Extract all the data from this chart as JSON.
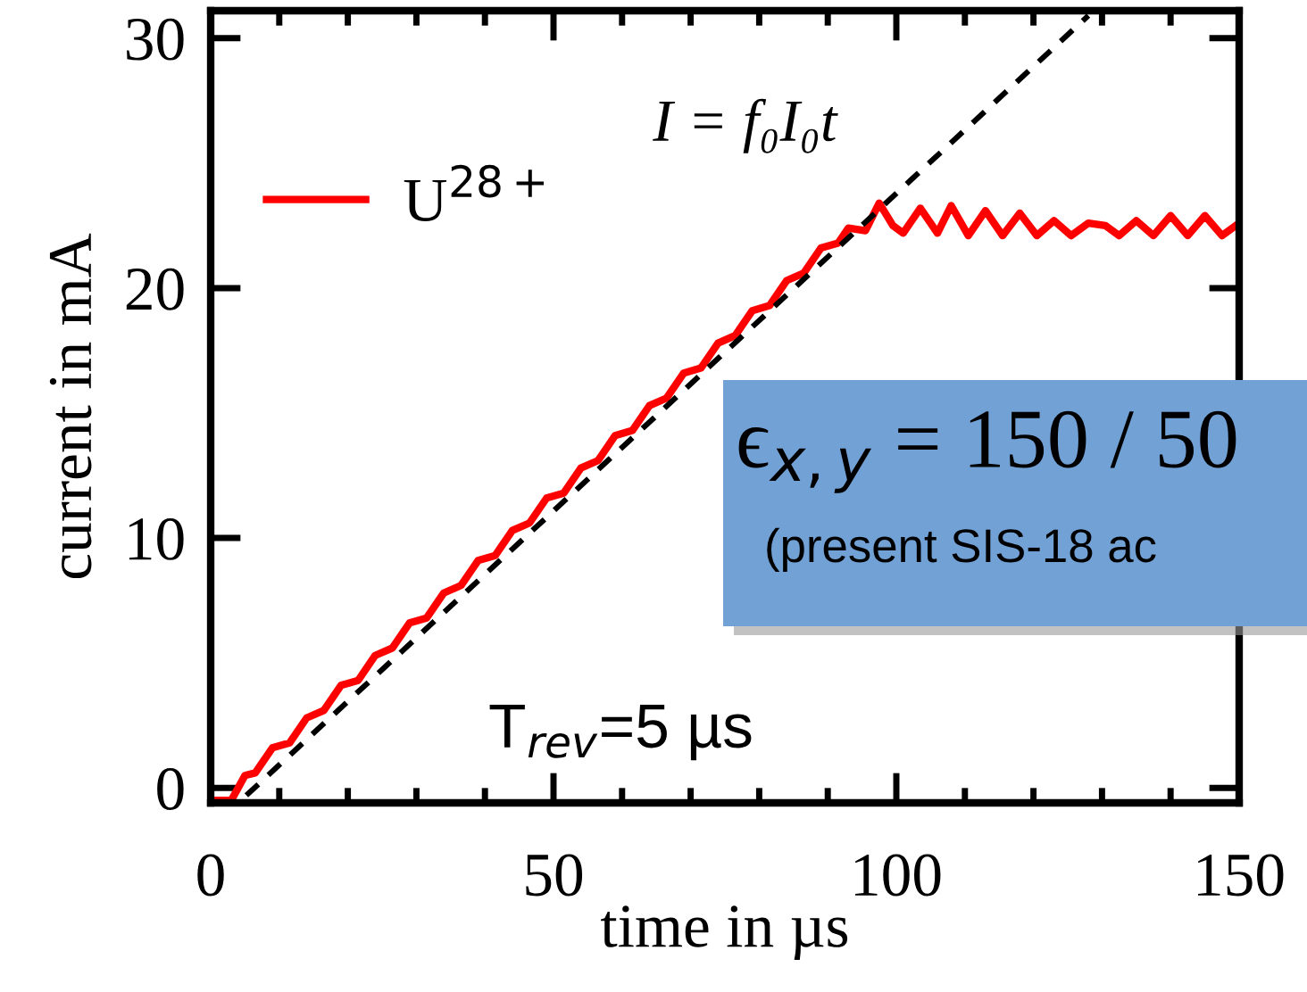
{
  "chart_data": {
    "type": "line",
    "xlabel": "time in µs",
    "ylabel": "current in mA",
    "xlim": [
      0,
      150
    ],
    "ylim": [
      -0.6,
      31.1
    ],
    "xticks": [
      0,
      50,
      100,
      150
    ],
    "yticks": [
      0,
      10,
      20,
      30
    ],
    "grid": false,
    "legend": "top left",
    "series": [
      {
        "name": "U$^{28+}$",
        "color": "#ff0000",
        "line_style": "solid",
        "x": [
          0,
          3,
          5,
          6.5,
          9,
          11.5,
          14,
          16.5,
          19,
          21.5,
          24,
          26.5,
          29,
          31.5,
          34,
          36.5,
          39,
          41.5,
          44,
          46.5,
          49,
          51.5,
          54,
          56.5,
          59,
          61.5,
          64,
          66.5,
          69,
          71.5,
          74,
          76.5,
          79,
          81.5,
          84,
          86.5,
          89,
          91.5,
          93,
          95.5,
          97.5,
          99.5,
          101,
          103.5,
          106,
          108,
          110.5,
          113,
          115.5,
          118,
          120.5,
          123,
          125.5,
          128,
          130.5,
          132.5,
          135,
          137.5,
          140,
          142.5,
          145,
          147.5,
          150
        ],
        "values": [
          -0.5,
          -0.5,
          0.5,
          0.6,
          1.6,
          1.8,
          2.8,
          3.1,
          4.1,
          4.3,
          5.3,
          5.6,
          6.6,
          6.8,
          7.8,
          8.1,
          9.1,
          9.3,
          10.3,
          10.6,
          11.6,
          11.8,
          12.8,
          13.1,
          14.1,
          14.3,
          15.3,
          15.6,
          16.6,
          16.8,
          17.8,
          18.1,
          19.1,
          19.3,
          20.3,
          20.6,
          21.6,
          21.8,
          22.4,
          22.3,
          23.4,
          22.5,
          22.2,
          23.2,
          22.2,
          23.3,
          22.1,
          23.1,
          22.1,
          23.0,
          22.1,
          22.7,
          22.1,
          22.6,
          22.5,
          22.1,
          22.7,
          22.1,
          22.9,
          22.1,
          22.9,
          22.1,
          22.6
        ]
      },
      {
        "color": "#000000",
        "line_style": "dashed",
        "x": [
          5.2,
          128
        ],
        "values": [
          -0.3,
          30.9
        ]
      }
    ],
    "annotations": [
      "I = f₀I₀t",
      "T$_{rev}$=5 µs",
      "ϵ$_{x,y}$ = 150 / 50",
      "(present SIS-18 ac"
    ]
  }
}
